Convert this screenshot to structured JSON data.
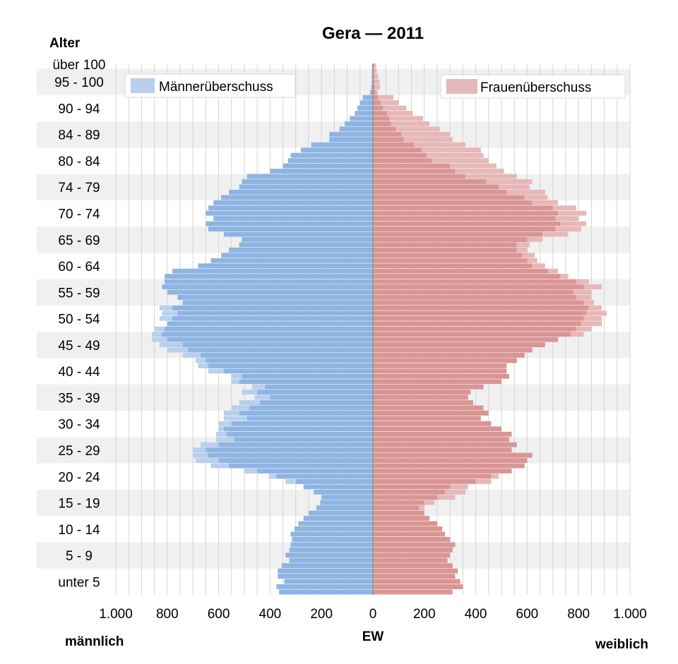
{
  "chart_data": {
    "type": "bar",
    "subtype": "population-pyramid",
    "title": "Gera — 2011",
    "y_axis_title": "Alter",
    "x_axis_title": "EW",
    "left_label": "männlich",
    "right_label": "weiblich",
    "x_ticks": [
      {
        "value": -1000,
        "label": "1.000"
      },
      {
        "value": -800,
        "label": "800"
      },
      {
        "value": -600,
        "label": "600"
      },
      {
        "value": -400,
        "label": "400"
      },
      {
        "value": -200,
        "label": "200"
      },
      {
        "value": 0,
        "label": "0"
      },
      {
        "value": 200,
        "label": "200"
      },
      {
        "value": 400,
        "label": "400"
      },
      {
        "value": 600,
        "label": "600"
      },
      {
        "value": 800,
        "label": "800"
      },
      {
        "value": 1000,
        "label": "1.000"
      }
    ],
    "xlim": [
      -1000,
      1000
    ],
    "age_groups": [
      "unter 5",
      "5 - 9",
      "10 - 14",
      "15 - 19",
      "20 - 24",
      "25 - 29",
      "30 - 34",
      "35 - 39",
      "40 - 44",
      "45 - 49",
      "50 - 54",
      "55 - 59",
      "60 - 64",
      "65 - 69",
      "70 - 74",
      "74 - 79",
      "80 - 84",
      "84 - 89",
      "90 - 94",
      "95 - 100",
      "über 100"
    ],
    "ages": [
      0,
      1,
      2,
      3,
      4,
      5,
      6,
      7,
      8,
      9,
      10,
      11,
      12,
      13,
      14,
      15,
      16,
      17,
      18,
      19,
      20,
      21,
      22,
      23,
      24,
      25,
      26,
      27,
      28,
      29,
      30,
      31,
      32,
      33,
      34,
      35,
      36,
      37,
      38,
      39,
      40,
      41,
      42,
      43,
      44,
      45,
      46,
      47,
      48,
      49,
      50,
      51,
      52,
      53,
      54,
      55,
      56,
      57,
      58,
      59,
      60,
      61,
      62,
      63,
      64,
      65,
      66,
      67,
      68,
      69,
      70,
      71,
      72,
      73,
      74,
      75,
      76,
      77,
      78,
      79,
      80,
      81,
      82,
      83,
      84,
      85,
      86,
      87,
      88,
      89,
      90,
      91,
      92,
      93,
      94,
      95,
      96,
      97,
      98,
      99,
      100
    ],
    "series": [
      {
        "name": "Männer",
        "color": "#8db4e2",
        "values": [
          365,
          375,
          345,
          370,
          370,
          355,
          325,
          340,
          325,
          320,
          315,
          320,
          305,
          290,
          270,
          250,
          220,
          205,
          200,
          230,
          270,
          300,
          375,
          450,
          560,
          600,
          640,
          650,
          600,
          540,
          570,
          580,
          550,
          490,
          520,
          480,
          440,
          400,
          450,
          420,
          520,
          510,
          580,
          640,
          650,
          670,
          720,
          740,
          800,
          820,
          810,
          800,
          780,
          760,
          780,
          740,
          760,
          800,
          820,
          810,
          810,
          780,
          680,
          630,
          590,
          560,
          520,
          510,
          580,
          640,
          650,
          620,
          650,
          640,
          620,
          590,
          560,
          520,
          510,
          490,
          400,
          350,
          330,
          320,
          280,
          240,
          170,
          170,
          130,
          110,
          90,
          70,
          60,
          50,
          40,
          10,
          6,
          4,
          4,
          4,
          3
        ]
      },
      {
        "name": "Frauen",
        "color": "#d99594",
        "values": [
          310,
          350,
          340,
          320,
          330,
          310,
          290,
          300,
          310,
          320,
          300,
          280,
          270,
          250,
          220,
          200,
          180,
          200,
          250,
          280,
          300,
          400,
          460,
          540,
          590,
          600,
          620,
          540,
          560,
          530,
          540,
          500,
          460,
          420,
          450,
          430,
          390,
          370,
          380,
          430,
          500,
          530,
          520,
          520,
          560,
          590,
          620,
          670,
          720,
          770,
          790,
          810,
          820,
          830,
          840,
          820,
          790,
          780,
          820,
          790,
          730,
          680,
          620,
          600,
          580,
          560,
          560,
          600,
          660,
          710,
          730,
          710,
          720,
          700,
          620,
          590,
          520,
          490,
          440,
          360,
          320,
          300,
          230,
          210,
          190,
          160,
          120,
          110,
          90,
          70,
          65,
          55,
          40,
          30,
          20,
          10,
          8,
          6,
          5,
          5,
          4
        ]
      },
      {
        "name": "Männerüberschuss",
        "color": "#b8d0ec",
        "values": [
          0,
          0,
          0,
          0,
          0,
          0,
          0,
          0,
          0,
          0,
          0,
          0,
          0,
          0,
          0,
          0,
          0,
          0,
          0,
          0,
          0,
          40,
          30,
          50,
          70,
          90,
          60,
          50,
          70,
          70,
          40,
          20,
          50,
          90,
          60,
          70,
          80,
          60,
          60,
          50,
          30,
          40,
          60,
          40,
          40,
          70,
          80,
          90,
          60,
          40,
          40,
          0,
          50,
          60,
          50,
          0,
          0,
          0,
          0,
          0,
          0,
          0,
          0,
          0,
          0,
          0,
          0,
          0,
          0,
          0,
          0,
          0,
          0,
          0,
          0,
          0,
          0,
          0,
          0,
          0,
          0,
          0,
          0,
          0,
          0,
          0,
          0,
          0,
          0,
          0,
          0,
          0,
          0,
          0,
          0,
          0,
          0,
          0,
          0,
          0,
          0
        ]
      },
      {
        "name": "Frauenüberschuss",
        "color": "#e6b8b7",
        "values": [
          0,
          0,
          0,
          0,
          0,
          0,
          0,
          0,
          0,
          0,
          0,
          0,
          0,
          0,
          0,
          0,
          20,
          40,
          70,
          80,
          70,
          60,
          30,
          0,
          0,
          0,
          0,
          0,
          0,
          0,
          0,
          0,
          0,
          0,
          0,
          0,
          0,
          0,
          0,
          0,
          0,
          0,
          0,
          0,
          0,
          0,
          0,
          0,
          0,
          50,
          60,
          80,
          70,
          80,
          50,
          40,
          60,
          70,
          70,
          50,
          30,
          40,
          50,
          40,
          50,
          40,
          50,
          60,
          100,
          100,
          100,
          90,
          110,
          90,
          100,
          90,
          150,
          120,
          180,
          200,
          190,
          180,
          220,
          220,
          230,
          200,
          190,
          190,
          170,
          150,
          130,
          100,
          90,
          70,
          60,
          10,
          20,
          20,
          15,
          10,
          8
        ]
      }
    ],
    "legend": [
      "Männerüberschuss",
      "Frauenüberschuss"
    ],
    "grid": true
  }
}
